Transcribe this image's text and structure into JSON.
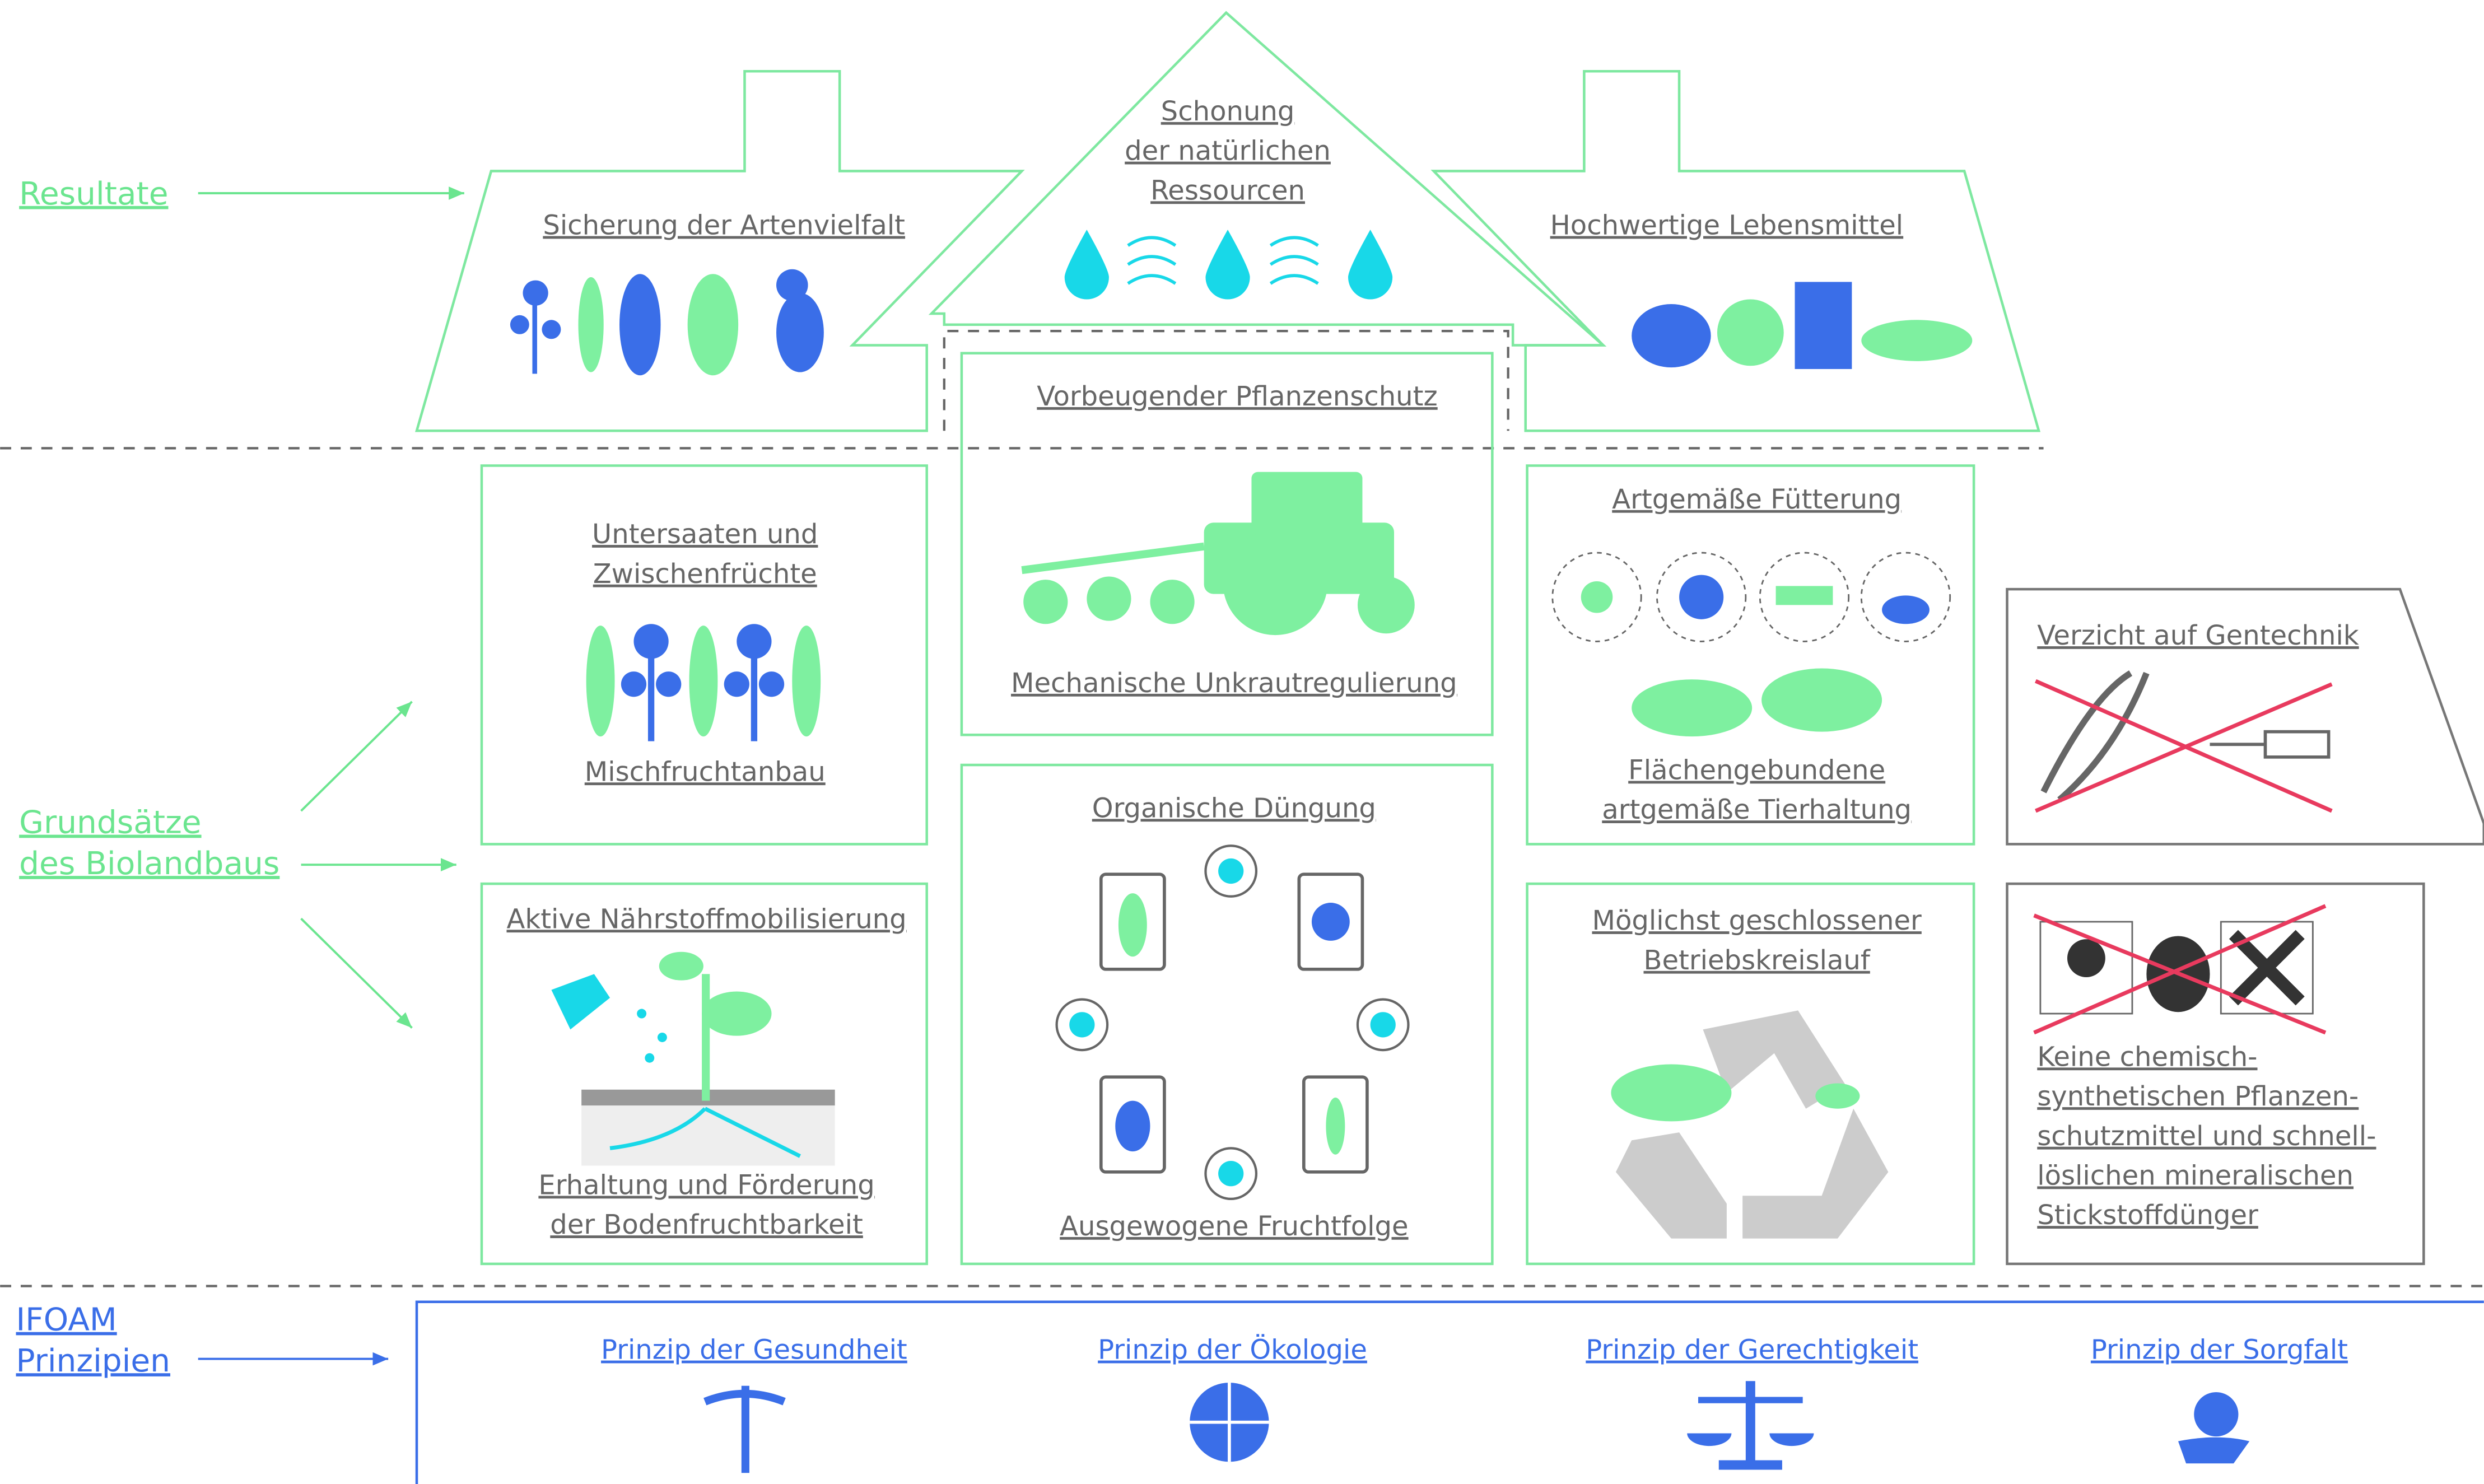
{
  "side_labels": {
    "results": "Resultate",
    "principles": [
      "Grundsätze",
      "des Biolandbaus"
    ],
    "ifoam": [
      "IFOAM",
      "Prinzipien"
    ]
  },
  "results": {
    "biodiversity": "Sicherung der Artenvielfalt",
    "resources": [
      "Schonung",
      "der natürlichen",
      "Ressourcen"
    ],
    "food": "Hochwertige Lebensmittel"
  },
  "practices": {
    "undersowing": {
      "title": [
        "Untersaaten und",
        "Zwischenfrüchte"
      ],
      "caption": "Mischfruchtanbau"
    },
    "plant_protection": {
      "title": "Vorbeugender Pflanzenschutz",
      "caption": "Mechanische Unkrautregulierung"
    },
    "feeding": {
      "title": "Artgemäße Fütterung",
      "caption": [
        "Flächengebundene",
        "artgemäße Tierhaltung"
      ]
    },
    "nutrients": {
      "title": "Aktive Nährstoffmobilisierung",
      "caption": [
        "Erhaltung und Förderung",
        "der Bodenfruchtbarkeit"
      ]
    },
    "fertilization": {
      "title": "Organische Düngung",
      "caption": "Ausgewogene Fruchtfolge"
    },
    "cycle": {
      "title": [
        "Möglichst geschlossener",
        "Betriebskreislauf"
      ]
    },
    "no_gmo": {
      "title": "Verzicht auf Gentechnik"
    },
    "no_chemicals": {
      "title": [
        "Keine chemisch-",
        "synthetischen Pflanzen-",
        "schutzmittel und schnell-",
        "löslichen mineralischen",
        "Stickstoffdünger"
      ]
    }
  },
  "ifoam_principles": [
    "Prinzip der Gesundheit",
    "Prinzip der Ökologie",
    "Prinzip der Gerechtigkeit",
    "Prinzip der Sorgfalt"
  ]
}
